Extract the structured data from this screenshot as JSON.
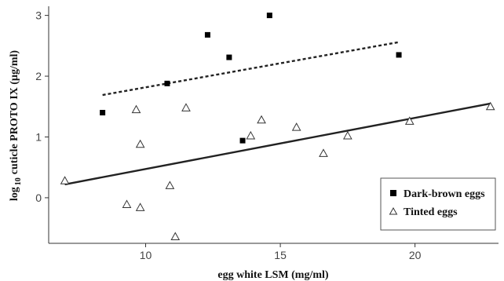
{
  "chart_data": {
    "type": "scatter",
    "xlabel": "egg white LSM (mg/ml)",
    "ylabel_prefix": "log",
    "ylabel_sub": "10",
    "ylabel_rest": "cuticle PROTO IX (µg/ml)",
    "xlim": [
      6.4,
      23.1
    ],
    "ylim": [
      -0.75,
      3.15
    ],
    "x_ticks": [
      10,
      15,
      20
    ],
    "y_ticks": [
      0,
      1,
      2,
      3
    ],
    "grid": false,
    "legend_position": "bottom-right",
    "series": [
      {
        "name": "Dark-brown eggs",
        "marker": "filled-square",
        "color": "#000000",
        "points": [
          {
            "x": 8.4,
            "y": 1.4
          },
          {
            "x": 10.8,
            "y": 1.88
          },
          {
            "x": 12.3,
            "y": 2.68
          },
          {
            "x": 13.1,
            "y": 2.31
          },
          {
            "x": 13.6,
            "y": 0.94
          },
          {
            "x": 14.6,
            "y": 3.0
          },
          {
            "x": 19.4,
            "y": 2.35
          }
        ],
        "trend": {
          "style": "dashed",
          "x": [
            8.4,
            19.4
          ],
          "y": [
            1.69,
            2.56
          ]
        }
      },
      {
        "name": "Tinted eggs",
        "marker": "open-triangle",
        "color": "#333333",
        "points": [
          {
            "x": 7.0,
            "y": 0.28
          },
          {
            "x": 9.3,
            "y": -0.11
          },
          {
            "x": 9.65,
            "y": 1.45
          },
          {
            "x": 9.8,
            "y": 0.88
          },
          {
            "x": 9.8,
            "y": -0.16
          },
          {
            "x": 10.9,
            "y": 0.2
          },
          {
            "x": 11.1,
            "y": -0.64
          },
          {
            "x": 11.5,
            "y": 1.48
          },
          {
            "x": 13.9,
            "y": 1.02
          },
          {
            "x": 14.3,
            "y": 1.28
          },
          {
            "x": 15.6,
            "y": 1.16
          },
          {
            "x": 16.6,
            "y": 0.73
          },
          {
            "x": 17.5,
            "y": 1.02
          },
          {
            "x": 19.8,
            "y": 1.26
          },
          {
            "x": 22.8,
            "y": 1.5
          }
        ],
        "trend": {
          "style": "solid",
          "x": [
            7.0,
            22.8
          ],
          "y": [
            0.22,
            1.55
          ]
        }
      }
    ]
  }
}
